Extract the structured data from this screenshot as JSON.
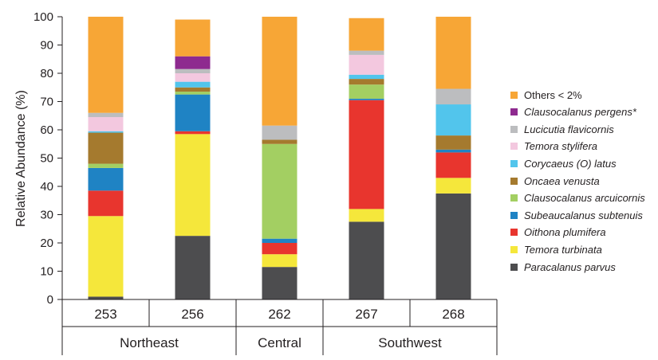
{
  "chart_data": {
    "type": "bar",
    "stacked": true,
    "ylabel": "Relative Abundance (%)",
    "xlabel": "",
    "ylim": [
      0,
      100
    ],
    "yticks": [
      0,
      10,
      20,
      30,
      40,
      50,
      60,
      70,
      80,
      90,
      100
    ],
    "categories": [
      "253",
      "256",
      "262",
      "267",
      "268"
    ],
    "groups": [
      {
        "label": "Northeast",
        "categories": [
          "253",
          "256"
        ]
      },
      {
        "label": "Central",
        "categories": [
          "262"
        ]
      },
      {
        "label": "Southwest",
        "categories": [
          "267",
          "268"
        ]
      }
    ],
    "legend_position": "right",
    "series": [
      {
        "name": "Paracalanus parvus",
        "italic": true,
        "color": "#4d4d4f",
        "values": [
          1,
          22.5,
          11.5,
          27.5,
          37.5
        ]
      },
      {
        "name": "Temora turbinata",
        "italic": true,
        "color": "#f5e73b",
        "values": [
          28.5,
          36,
          4.5,
          4.5,
          5.5
        ]
      },
      {
        "name": "Oithona plumifera",
        "italic": true,
        "color": "#e8352e",
        "values": [
          9,
          1,
          4,
          38.5,
          9
        ]
      },
      {
        "name": "Subeaucalanus subtenuis",
        "italic": true,
        "color": "#1f83c4",
        "values": [
          8,
          13,
          1.5,
          0.5,
          1
        ]
      },
      {
        "name": "Clausocalanus arcuicornis",
        "italic": true,
        "color": "#a3cf62",
        "values": [
          1.5,
          1,
          33.5,
          5,
          0
        ]
      },
      {
        "name": "Oncaea venusta",
        "italic": true,
        "color": "#a57a2e",
        "values": [
          11,
          1.5,
          1.5,
          2,
          5
        ]
      },
      {
        "name": "Corycaeus (O) latus",
        "italic": true,
        "color": "#52c5ec",
        "values": [
          0.5,
          2,
          0,
          1.5,
          11
        ]
      },
      {
        "name": "Temora stylifera",
        "italic": true,
        "color": "#f3c8df",
        "values": [
          5,
          3,
          0,
          7,
          0
        ]
      },
      {
        "name": "Lucicutia flavicornis",
        "italic": true,
        "color": "#bcbdbf",
        "values": [
          1.5,
          1.5,
          5,
          1.5,
          5.5
        ]
      },
      {
        "name": "Clausocalanus pergens*",
        "italic": true,
        "color": "#8e2a8f",
        "values": [
          0,
          4.5,
          0,
          0,
          0
        ]
      },
      {
        "name": "Others < 2%",
        "italic": false,
        "color": "#f7a636",
        "values": [
          34,
          13,
          38.5,
          11.5,
          25.5
        ]
      }
    ]
  }
}
